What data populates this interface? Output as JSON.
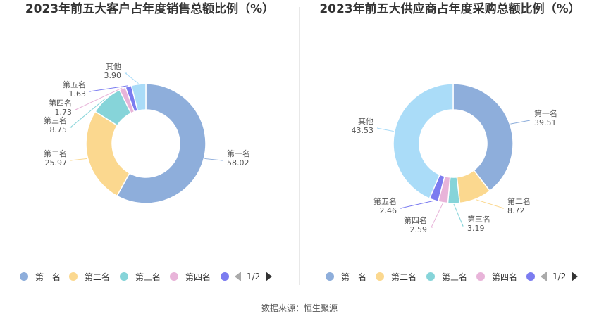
{
  "colors": [
    "#8eaedb",
    "#fbd88f",
    "#86d4d9",
    "#e8b4d9",
    "#7b7cf0",
    "#aadcf8"
  ],
  "chart_data": [
    {
      "type": "pie",
      "title": "2023年前五大客户占年度销售总额比例（%）",
      "slices": [
        {
          "name": "第一名",
          "value": "58.02"
        },
        {
          "name": "第二名",
          "value": "25.97"
        },
        {
          "name": "第三名",
          "value": "8.75"
        },
        {
          "name": "第四名",
          "value": "1.73"
        },
        {
          "name": "第五名",
          "value": "1.63"
        },
        {
          "name": "其他",
          "value": "3.90"
        }
      ],
      "legend": {
        "items": [
          "第一名",
          "第二名",
          "第三名",
          "第四名"
        ],
        "pager": "1/2",
        "position": "bottom"
      }
    },
    {
      "type": "pie",
      "title": "2023年前五大供应商占年度采购总额比例（%）",
      "slices": [
        {
          "name": "第一名",
          "value": "39.51"
        },
        {
          "name": "第二名",
          "value": "8.72"
        },
        {
          "name": "第三名",
          "value": "3.19"
        },
        {
          "name": "第四名",
          "value": "2.59"
        },
        {
          "name": "第五名",
          "value": "2.46"
        },
        {
          "name": "其他",
          "value": "43.53"
        }
      ],
      "legend": {
        "items": [
          "第一名",
          "第二名",
          "第三名",
          "第四名"
        ],
        "pager": "1/2",
        "position": "bottom"
      }
    }
  ],
  "footer": {
    "source": "数据来源：恒生聚源"
  }
}
